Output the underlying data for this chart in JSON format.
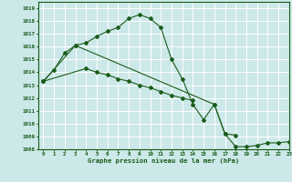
{
  "title": "Graphe pression niveau de la mer (hPa)",
  "background_color": "#cce8e8",
  "grid_color": "#ffffff",
  "line_color": "#1a5c1a",
  "ylim": [
    1008,
    1019.5
  ],
  "xlim": [
    -0.5,
    23
  ],
  "yticks": [
    1008,
    1009,
    1010,
    1011,
    1012,
    1013,
    1014,
    1015,
    1016,
    1017,
    1018,
    1019
  ],
  "xticks": [
    0,
    1,
    2,
    3,
    4,
    5,
    6,
    7,
    8,
    9,
    10,
    11,
    12,
    13,
    14,
    15,
    16,
    17,
    18,
    19,
    20,
    21,
    22,
    23
  ],
  "line1_x": [
    0,
    1,
    2,
    3,
    4,
    5,
    6,
    7,
    8,
    9,
    10,
    11,
    12,
    13,
    14,
    15,
    16,
    17,
    18
  ],
  "line1_y": [
    1013.3,
    1014.2,
    1015.5,
    1016.1,
    1016.3,
    1016.8,
    1017.2,
    1017.5,
    1018.2,
    1018.5,
    1018.2,
    1017.5,
    1015.0,
    1013.5,
    1011.5,
    1010.3,
    1011.5,
    1009.2,
    1009.1
  ],
  "line2_x": [
    0,
    3,
    16,
    17,
    18,
    19,
    20,
    21,
    22,
    23
  ],
  "line2_y": [
    1013.3,
    1016.1,
    1011.5,
    1009.2,
    1008.2,
    1008.2,
    1008.3,
    1008.5,
    1008.5,
    1008.6
  ],
  "line3_x": [
    0,
    4,
    5,
    6,
    7,
    8,
    9,
    10,
    11,
    12,
    13,
    14
  ],
  "line3_y": [
    1013.3,
    1014.3,
    1014.0,
    1013.8,
    1013.5,
    1013.3,
    1013.0,
    1012.8,
    1012.5,
    1012.2,
    1012.0,
    1011.8
  ]
}
